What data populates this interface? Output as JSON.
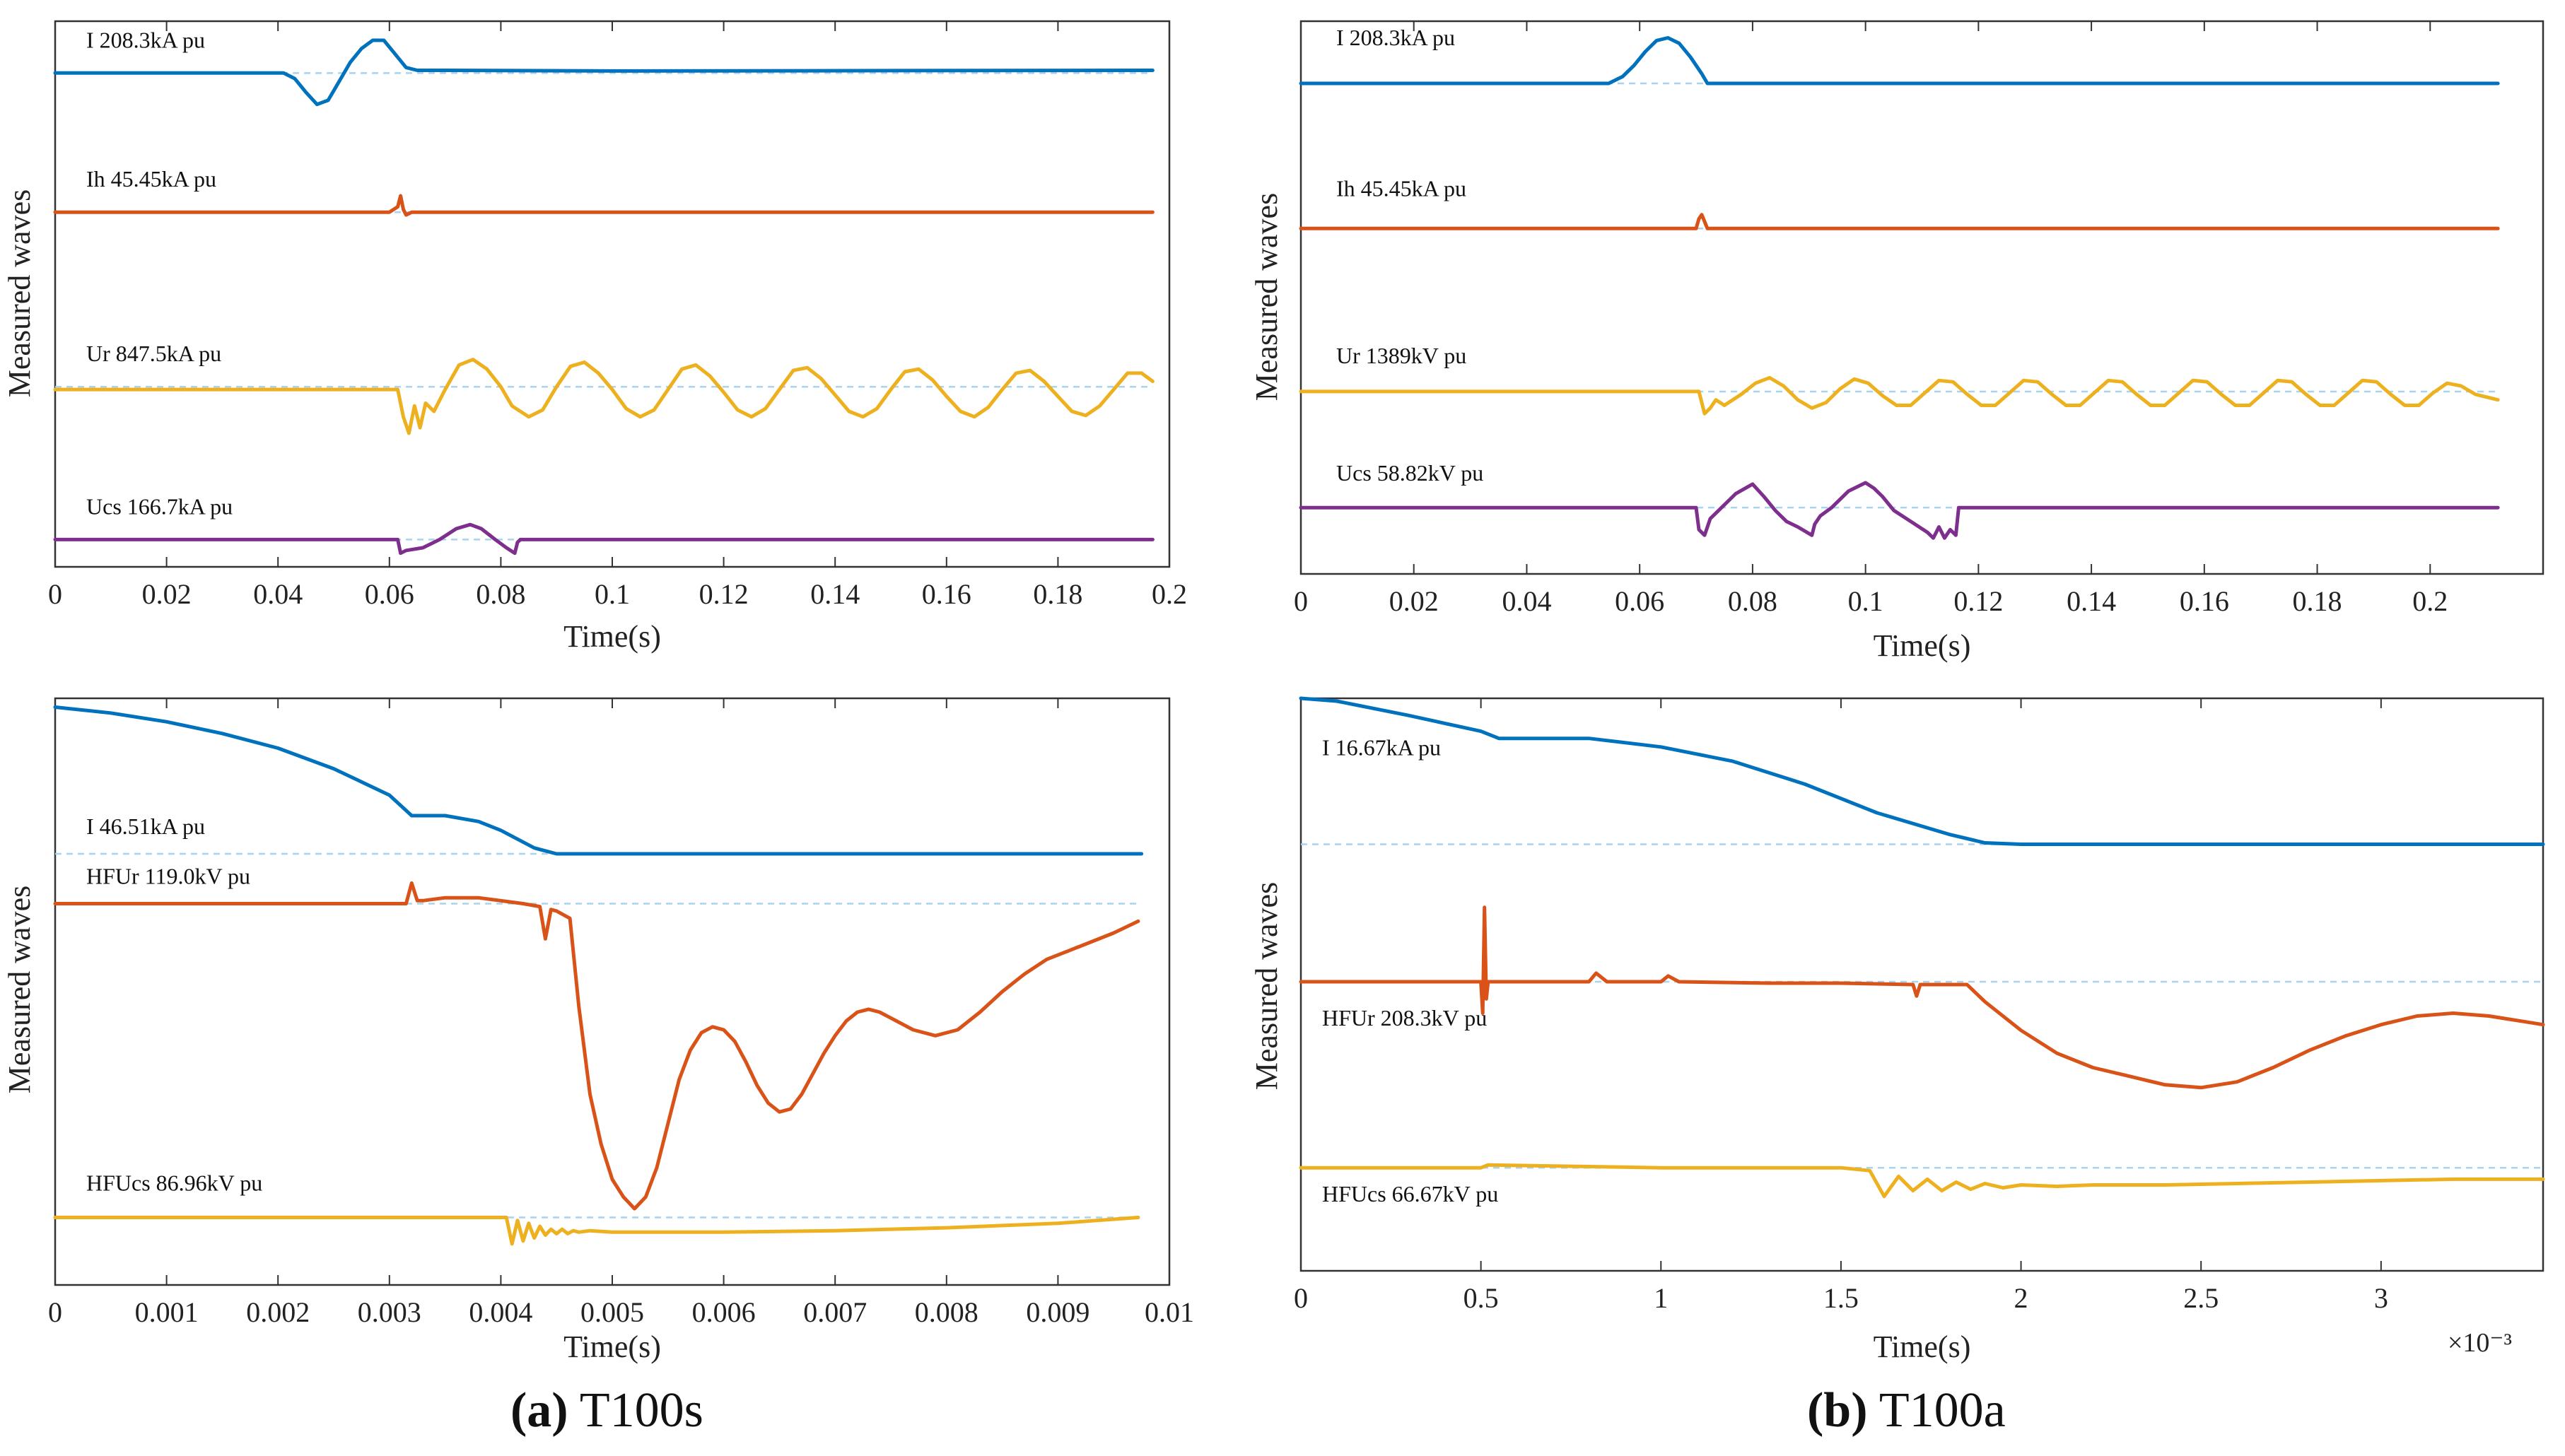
{
  "figure": {
    "caption_a_letter": "(a)",
    "caption_a_text": "T100s",
    "caption_b_letter": "(b)",
    "caption_b_text": "T100a"
  },
  "colors": {
    "blue": "#0072BD",
    "red": "#D95319",
    "yellow": "#EDB120",
    "purple": "#7E2F8E",
    "dashed": "#A8D4EE",
    "frame": "#333333"
  },
  "chart_data": [
    {
      "id": "a-top",
      "type": "line",
      "title": "",
      "xlabel": "Time(s)",
      "ylabel": "Measured waves",
      "xlim": [
        0,
        0.2
      ],
      "xticks": [
        0,
        0.02,
        0.04,
        0.06,
        0.08,
        0.1,
        0.12,
        0.14,
        0.16,
        0.18,
        0.2
      ],
      "xtick_labels": [
        "0",
        "0.02",
        "0.04",
        "0.06",
        "0.08",
        "0.1",
        "0.12",
        "0.14",
        "0.16",
        "0.18",
        "0.2"
      ],
      "ylim": [
        0,
        4
      ],
      "multiplier": "",
      "series": [
        {
          "name": "I",
          "label": "I  208.3kA pu",
          "color": "blue",
          "baseline": 3.62,
          "x": [
            0,
            0.041,
            0.043,
            0.045,
            0.047,
            0.049,
            0.051,
            0.053,
            0.055,
            0.057,
            0.059,
            0.061,
            0.063,
            0.065,
            0.07,
            0.1,
            0.197
          ],
          "y": [
            3.62,
            3.62,
            3.58,
            3.48,
            3.39,
            3.42,
            3.56,
            3.7,
            3.8,
            3.86,
            3.86,
            3.76,
            3.66,
            3.64,
            3.64,
            3.635,
            3.64
          ]
        },
        {
          "name": "Ih",
          "label": "Ih  45.45kA pu",
          "color": "red",
          "baseline": 2.6,
          "x": [
            0,
            0.06,
            0.0615,
            0.062,
            0.0625,
            0.063,
            0.064,
            0.1,
            0.197
          ],
          "y": [
            2.6,
            2.6,
            2.64,
            2.72,
            2.62,
            2.58,
            2.6,
            2.6,
            2.6
          ]
        },
        {
          "name": "Ur",
          "label": "Ur  847.5kA pu",
          "color": "yellow",
          "baseline": 1.32,
          "x": [
            0,
            0.0615,
            0.0625,
            0.0635,
            0.0645,
            0.0655,
            0.0665,
            0.068,
            0.07,
            0.0725,
            0.075,
            0.0775,
            0.08,
            0.082,
            0.085,
            0.0875,
            0.09,
            0.0925,
            0.095,
            0.0975,
            0.1,
            0.1025,
            0.105,
            0.1075,
            0.11,
            0.1125,
            0.115,
            0.1175,
            0.12,
            0.1225,
            0.125,
            0.1275,
            0.13,
            0.1325,
            0.135,
            0.1375,
            0.14,
            0.1425,
            0.145,
            0.1475,
            0.15,
            0.1525,
            0.155,
            0.1575,
            0.16,
            0.1625,
            0.165,
            0.1675,
            0.17,
            0.1725,
            0.175,
            0.1775,
            0.18,
            0.1825,
            0.185,
            0.1875,
            0.19,
            0.1925,
            0.195,
            0.197
          ],
          "y": [
            1.3,
            1.3,
            1.1,
            0.98,
            1.18,
            1.02,
            1.2,
            1.14,
            1.3,
            1.48,
            1.52,
            1.45,
            1.32,
            1.18,
            1.1,
            1.15,
            1.32,
            1.47,
            1.5,
            1.42,
            1.3,
            1.16,
            1.1,
            1.15,
            1.3,
            1.45,
            1.48,
            1.4,
            1.28,
            1.15,
            1.1,
            1.16,
            1.3,
            1.44,
            1.46,
            1.38,
            1.26,
            1.14,
            1.1,
            1.16,
            1.3,
            1.43,
            1.45,
            1.37,
            1.25,
            1.14,
            1.1,
            1.17,
            1.3,
            1.42,
            1.44,
            1.36,
            1.25,
            1.14,
            1.11,
            1.18,
            1.3,
            1.42,
            1.42,
            1.36
          ]
        },
        {
          "name": "Ucs",
          "label": "Ucs  166.7kA pu",
          "color": "purple",
          "baseline": 0.2,
          "x": [
            0,
            0.0615,
            0.062,
            0.063,
            0.066,
            0.069,
            0.072,
            0.0745,
            0.0765,
            0.079,
            0.081,
            0.0825,
            0.083,
            0.0835,
            0.085,
            0.197
          ],
          "y": [
            0.2,
            0.2,
            0.1,
            0.12,
            0.14,
            0.2,
            0.28,
            0.31,
            0.28,
            0.2,
            0.14,
            0.1,
            0.18,
            0.2,
            0.2,
            0.2
          ]
        }
      ]
    },
    {
      "id": "b-top",
      "type": "line",
      "title": "",
      "xlabel": "Time(s)",
      "ylabel": "Measured waves",
      "xlim": [
        0,
        0.22
      ],
      "xticks": [
        0,
        0.02,
        0.04,
        0.06,
        0.08,
        0.1,
        0.12,
        0.14,
        0.16,
        0.18,
        0.2
      ],
      "xtick_labels": [
        "0",
        "0.02",
        "0.04",
        "0.06",
        "0.08",
        "0.1",
        "0.12",
        "0.14",
        "0.16",
        "0.18",
        "0.2"
      ],
      "ylim": [
        0,
        4
      ],
      "multiplier": "",
      "series": [
        {
          "name": "I",
          "label": "I  208.3kA pu",
          "color": "blue",
          "baseline": 3.55,
          "x": [
            0,
            0.0545,
            0.0555,
            0.057,
            0.059,
            0.061,
            0.063,
            0.065,
            0.067,
            0.069,
            0.071,
            0.072,
            0.1,
            0.212
          ],
          "y": [
            3.55,
            3.55,
            3.57,
            3.6,
            3.68,
            3.78,
            3.86,
            3.88,
            3.84,
            3.74,
            3.62,
            3.55,
            3.55,
            3.55
          ]
        },
        {
          "name": "Ih",
          "label": "Ih  45.45kA pu",
          "color": "red",
          "baseline": 2.5,
          "x": [
            0,
            0.07,
            0.0705,
            0.071,
            0.0715,
            0.072,
            0.1,
            0.212
          ],
          "y": [
            2.5,
            2.5,
            2.57,
            2.6,
            2.55,
            2.5,
            2.5,
            2.5
          ]
        },
        {
          "name": "Ur",
          "label": "Ur  1389kV pu",
          "color": "yellow",
          "baseline": 1.32,
          "x": [
            0,
            0.0705,
            0.0715,
            0.0725,
            0.0735,
            0.075,
            0.078,
            0.0805,
            0.083,
            0.0855,
            0.088,
            0.0905,
            0.093,
            0.0955,
            0.098,
            0.1005,
            0.103,
            0.1055,
            0.108,
            0.1105,
            0.113,
            0.1155,
            0.118,
            0.1205,
            0.123,
            0.1255,
            0.128,
            0.1305,
            0.133,
            0.1355,
            0.138,
            0.1405,
            0.143,
            0.1455,
            0.148,
            0.1505,
            0.153,
            0.1555,
            0.158,
            0.1605,
            0.163,
            0.1655,
            0.168,
            0.1705,
            0.173,
            0.1755,
            0.178,
            0.1805,
            0.183,
            0.1855,
            0.188,
            0.1905,
            0.193,
            0.1955,
            0.198,
            0.2005,
            0.203,
            0.2055,
            0.208,
            0.212
          ],
          "y": [
            1.32,
            1.32,
            1.16,
            1.2,
            1.26,
            1.22,
            1.3,
            1.38,
            1.42,
            1.36,
            1.26,
            1.2,
            1.24,
            1.34,
            1.41,
            1.38,
            1.29,
            1.22,
            1.22,
            1.31,
            1.4,
            1.39,
            1.3,
            1.22,
            1.22,
            1.31,
            1.4,
            1.39,
            1.3,
            1.22,
            1.22,
            1.31,
            1.4,
            1.39,
            1.3,
            1.22,
            1.22,
            1.31,
            1.4,
            1.39,
            1.3,
            1.22,
            1.22,
            1.31,
            1.4,
            1.39,
            1.3,
            1.22,
            1.22,
            1.31,
            1.4,
            1.39,
            1.3,
            1.22,
            1.22,
            1.31,
            1.38,
            1.36,
            1.3,
            1.26
          ]
        },
        {
          "name": "Ucs",
          "label": "Ucs  58.82kV pu",
          "color": "purple",
          "baseline": 0.48,
          "x": [
            0,
            0.07,
            0.0705,
            0.0715,
            0.0725,
            0.074,
            0.077,
            0.08,
            0.082,
            0.084,
            0.086,
            0.088,
            0.0905,
            0.091,
            0.092,
            0.094,
            0.097,
            0.1,
            0.1015,
            0.103,
            0.105,
            0.108,
            0.111,
            0.112,
            0.113,
            0.114,
            0.115,
            0.116,
            0.1165,
            0.12,
            0.212
          ],
          "y": [
            0.48,
            0.48,
            0.32,
            0.28,
            0.4,
            0.46,
            0.58,
            0.65,
            0.56,
            0.46,
            0.38,
            0.34,
            0.28,
            0.36,
            0.42,
            0.48,
            0.6,
            0.66,
            0.62,
            0.56,
            0.46,
            0.38,
            0.3,
            0.26,
            0.34,
            0.26,
            0.32,
            0.28,
            0.48,
            0.48,
            0.48
          ]
        }
      ]
    },
    {
      "id": "a-bottom",
      "type": "line",
      "title": "",
      "xlabel": "Time(s)",
      "ylabel": "Measured waves",
      "xlim": [
        0,
        0.01
      ],
      "xticks": [
        0,
        0.001,
        0.002,
        0.003,
        0.004,
        0.005,
        0.006,
        0.007,
        0.008,
        0.009,
        0.01
      ],
      "xtick_labels": [
        "0",
        "0.001",
        "0.002",
        "0.003",
        "0.004",
        "0.005",
        "0.006",
        "0.007",
        "0.008",
        "0.009",
        "0.01"
      ],
      "ylim": [
        0,
        4
      ],
      "multiplier": "",
      "series": [
        {
          "name": "I",
          "label": "I 46.51kA pu",
          "color": "blue",
          "baseline": 2.94,
          "x": [
            0,
            0.0005,
            0.001,
            0.0015,
            0.002,
            0.0025,
            0.003,
            0.0032,
            0.0035,
            0.0038,
            0.004,
            0.0043,
            0.0045,
            0.0046,
            0.005,
            0.00975
          ],
          "y": [
            3.94,
            3.9,
            3.84,
            3.76,
            3.66,
            3.52,
            3.34,
            3.2,
            3.2,
            3.16,
            3.1,
            2.98,
            2.94,
            2.94,
            2.94,
            2.94
          ]
        },
        {
          "name": "HFUr",
          "label": "HFUr 119.0kV pu",
          "color": "red",
          "baseline": 2.6,
          "x": [
            0,
            0.00315,
            0.0032,
            0.00325,
            0.0033,
            0.0035,
            0.0038,
            0.0042,
            0.00435,
            0.0044,
            0.00445,
            0.0045,
            0.00462,
            0.0047,
            0.0048,
            0.0049,
            0.005,
            0.0051,
            0.0052,
            0.0053,
            0.0054,
            0.0055,
            0.0056,
            0.0057,
            0.0058,
            0.0059,
            0.006,
            0.0061,
            0.0062,
            0.0063,
            0.0064,
            0.0065,
            0.0066,
            0.0067,
            0.0068,
            0.0069,
            0.007,
            0.0071,
            0.0072,
            0.0073,
            0.0074,
            0.0075,
            0.0077,
            0.0079,
            0.0081,
            0.0083,
            0.0085,
            0.0087,
            0.0089,
            0.0091,
            0.0093,
            0.0095,
            0.00972
          ],
          "y": [
            2.6,
            2.6,
            2.74,
            2.62,
            2.62,
            2.64,
            2.64,
            2.6,
            2.58,
            2.36,
            2.56,
            2.55,
            2.5,
            1.9,
            1.3,
            0.96,
            0.72,
            0.6,
            0.52,
            0.6,
            0.8,
            1.1,
            1.4,
            1.6,
            1.72,
            1.76,
            1.74,
            1.66,
            1.52,
            1.36,
            1.24,
            1.18,
            1.2,
            1.3,
            1.44,
            1.58,
            1.7,
            1.8,
            1.86,
            1.88,
            1.86,
            1.82,
            1.74,
            1.7,
            1.74,
            1.86,
            2.0,
            2.12,
            2.22,
            2.28,
            2.34,
            2.4,
            2.48
          ]
        },
        {
          "name": "HFUcs",
          "label": "HFUcs 86.96kV pu",
          "color": "yellow",
          "baseline": 0.46,
          "x": [
            0,
            0.00405,
            0.0041,
            0.00415,
            0.0042,
            0.00425,
            0.0043,
            0.00435,
            0.0044,
            0.00445,
            0.0045,
            0.00455,
            0.0046,
            0.00465,
            0.0047,
            0.0048,
            0.005,
            0.006,
            0.007,
            0.008,
            0.009,
            0.00972
          ],
          "y": [
            0.46,
            0.46,
            0.28,
            0.44,
            0.3,
            0.42,
            0.32,
            0.4,
            0.34,
            0.38,
            0.35,
            0.38,
            0.35,
            0.37,
            0.36,
            0.37,
            0.36,
            0.36,
            0.37,
            0.39,
            0.42,
            0.46
          ]
        }
      ]
    },
    {
      "id": "b-bottom",
      "type": "line",
      "title": "",
      "xlabel": "Time(s)",
      "ylabel": "Measured waves",
      "xlim": [
        0,
        3.45
      ],
      "xticks": [
        0,
        0.5,
        1,
        1.5,
        2,
        2.5,
        3
      ],
      "xtick_labels": [
        "0",
        "0.5",
        "1",
        "1.5",
        "2",
        "2.5",
        "3"
      ],
      "ylim": [
        0,
        4
      ],
      "multiplier": "×10⁻³",
      "series": [
        {
          "name": "I",
          "label": "I 16.67kA pu",
          "color": "blue",
          "baseline": 2.98,
          "x": [
            0,
            0.1,
            0.3,
            0.5,
            0.55,
            0.8,
            1.0,
            1.2,
            1.4,
            1.6,
            1.8,
            1.9,
            2.0,
            2.5,
            3.0,
            3.45
          ],
          "y": [
            4.0,
            3.98,
            3.88,
            3.77,
            3.72,
            3.72,
            3.66,
            3.56,
            3.4,
            3.2,
            3.05,
            2.99,
            2.98,
            2.98,
            2.98,
            2.98
          ]
        },
        {
          "name": "HFUr",
          "label": "HFUr 208.3kV pu",
          "color": "red",
          "baseline": 2.02,
          "x": [
            0,
            0.5,
            0.505,
            0.51,
            0.515,
            0.52,
            0.6,
            0.8,
            0.82,
            0.85,
            1.0,
            1.02,
            1.05,
            1.3,
            1.5,
            1.7,
            1.71,
            1.72,
            1.85,
            1.9,
            2.0,
            2.1,
            2.2,
            2.3,
            2.4,
            2.5,
            2.6,
            2.7,
            2.8,
            2.9,
            3.0,
            3.1,
            3.2,
            3.3,
            3.45
          ],
          "y": [
            2.02,
            2.02,
            1.8,
            2.54,
            1.9,
            2.02,
            2.02,
            2.02,
            2.08,
            2.02,
            2.02,
            2.06,
            2.02,
            2.01,
            2.01,
            2.0,
            1.92,
            2.0,
            2.0,
            1.88,
            1.68,
            1.52,
            1.42,
            1.36,
            1.3,
            1.28,
            1.32,
            1.42,
            1.54,
            1.64,
            1.72,
            1.78,
            1.8,
            1.78,
            1.72
          ]
        },
        {
          "name": "HFUcs",
          "label": "HFUcs 66.67kV pu",
          "color": "yellow",
          "baseline": 0.72,
          "x": [
            0,
            0.5,
            0.52,
            1.0,
            1.5,
            1.58,
            1.62,
            1.66,
            1.7,
            1.74,
            1.78,
            1.82,
            1.86,
            1.9,
            1.95,
            2.0,
            2.1,
            2.2,
            2.4,
            2.6,
            2.8,
            3.0,
            3.2,
            3.45
          ],
          "y": [
            0.72,
            0.72,
            0.74,
            0.72,
            0.72,
            0.7,
            0.52,
            0.66,
            0.56,
            0.64,
            0.56,
            0.62,
            0.57,
            0.61,
            0.58,
            0.6,
            0.59,
            0.6,
            0.6,
            0.61,
            0.62,
            0.63,
            0.64,
            0.64
          ]
        }
      ]
    }
  ]
}
